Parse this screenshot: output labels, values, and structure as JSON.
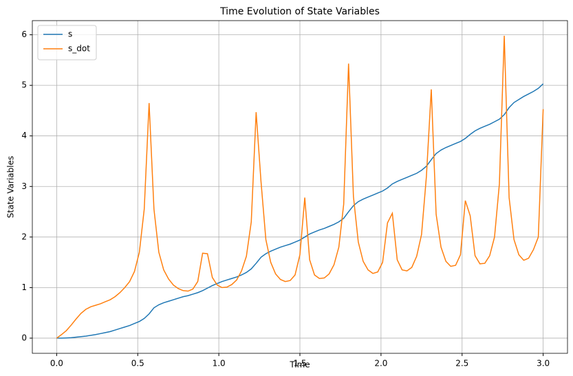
{
  "chart_data": {
    "type": "line",
    "title": "Time Evolution of State Variables",
    "x_label": "Time",
    "y_label": "State Variables",
    "x": [
      0,
      0.03,
      0.06,
      0.09,
      0.12,
      0.15,
      0.18,
      0.21,
      0.24,
      0.27,
      0.3,
      0.33,
      0.36,
      0.39,
      0.42,
      0.45,
      0.48,
      0.51,
      0.54,
      0.57,
      0.6,
      0.63,
      0.66,
      0.69,
      0.72,
      0.75,
      0.78,
      0.81,
      0.84,
      0.87,
      0.9,
      0.93,
      0.96,
      0.99,
      1.02,
      1.05,
      1.08,
      1.11,
      1.14,
      1.17,
      1.2,
      1.23,
      1.26,
      1.29,
      1.32,
      1.35,
      1.38,
      1.41,
      1.44,
      1.47,
      1.5,
      1.53,
      1.56,
      1.59,
      1.62,
      1.65,
      1.68,
      1.71,
      1.74,
      1.77,
      1.8,
      1.83,
      1.86,
      1.89,
      1.92,
      1.95,
      1.98,
      2.01,
      2.04,
      2.07,
      2.1,
      2.13,
      2.16,
      2.19,
      2.22,
      2.25,
      2.28,
      2.31,
      2.34,
      2.37,
      2.4,
      2.43,
      2.46,
      2.49,
      2.52,
      2.55,
      2.58,
      2.61,
      2.64,
      2.67,
      2.7,
      2.73,
      2.76,
      2.79,
      2.82,
      2.85,
      2.88,
      2.91,
      2.94,
      2.97,
      3.0
    ],
    "series": [
      {
        "name": "s",
        "color": "#1f77b4",
        "values": [
          0,
          0,
          0.005,
          0.01,
          0.02,
          0.03,
          0.04,
          0.055,
          0.07,
          0.09,
          0.11,
          0.13,
          0.16,
          0.19,
          0.22,
          0.25,
          0.29,
          0.33,
          0.39,
          0.48,
          0.6,
          0.66,
          0.7,
          0.73,
          0.76,
          0.79,
          0.82,
          0.84,
          0.87,
          0.9,
          0.94,
          0.99,
          1.04,
          1.08,
          1.12,
          1.15,
          1.18,
          1.21,
          1.25,
          1.3,
          1.37,
          1.48,
          1.6,
          1.67,
          1.72,
          1.76,
          1.8,
          1.83,
          1.86,
          1.9,
          1.94,
          2.0,
          2.06,
          2.1,
          2.14,
          2.17,
          2.21,
          2.25,
          2.3,
          2.37,
          2.5,
          2.62,
          2.7,
          2.75,
          2.79,
          2.83,
          2.87,
          2.91,
          2.97,
          3.05,
          3.1,
          3.14,
          3.18,
          3.22,
          3.26,
          3.32,
          3.4,
          3.53,
          3.65,
          3.72,
          3.77,
          3.81,
          3.85,
          3.89,
          3.95,
          4.03,
          4.1,
          4.15,
          4.19,
          4.23,
          4.28,
          4.33,
          4.42,
          4.56,
          4.66,
          4.72,
          4.78,
          4.83,
          4.88,
          4.94,
          5.03
        ]
      },
      {
        "name": "s_dot",
        "color": "#ff7f0e",
        "values": [
          0,
          0.07,
          0.15,
          0.26,
          0.38,
          0.49,
          0.57,
          0.62,
          0.65,
          0.68,
          0.72,
          0.76,
          0.82,
          0.9,
          1.0,
          1.12,
          1.32,
          1.7,
          2.55,
          4.65,
          2.55,
          1.7,
          1.35,
          1.17,
          1.05,
          0.98,
          0.94,
          0.93,
          0.97,
          1.12,
          1.68,
          1.67,
          1.2,
          1.05,
          1.0,
          1.01,
          1.06,
          1.15,
          1.33,
          1.62,
          2.3,
          4.47,
          3.1,
          1.95,
          1.5,
          1.27,
          1.16,
          1.12,
          1.14,
          1.25,
          1.65,
          2.78,
          1.55,
          1.25,
          1.18,
          1.19,
          1.27,
          1.45,
          1.8,
          2.65,
          5.43,
          2.8,
          1.9,
          1.52,
          1.35,
          1.28,
          1.31,
          1.5,
          2.28,
          2.47,
          1.55,
          1.35,
          1.33,
          1.4,
          1.62,
          2.05,
          3.2,
          4.92,
          2.45,
          1.8,
          1.52,
          1.42,
          1.44,
          1.65,
          2.72,
          2.42,
          1.63,
          1.47,
          1.48,
          1.63,
          2.0,
          3.05,
          5.98,
          2.78,
          1.95,
          1.65,
          1.54,
          1.58,
          1.75,
          2.0,
          4.53
        ]
      }
    ],
    "xlim": [
      -0.15,
      3.15
    ],
    "ylim": [
      -0.3,
      6.28
    ],
    "xticks": [
      {
        "value": 0,
        "label": "0.0"
      },
      0.5,
      {
        "value": 1,
        "label": "1.0"
      },
      1.5,
      {
        "value": 2,
        "label": "2.0"
      },
      2.5,
      {
        "value": 3,
        "label": "3.0"
      }
    ],
    "yticks": [
      0,
      1,
      2,
      3,
      4,
      5,
      6
    ],
    "grid": true,
    "legend": "upper-left"
  }
}
